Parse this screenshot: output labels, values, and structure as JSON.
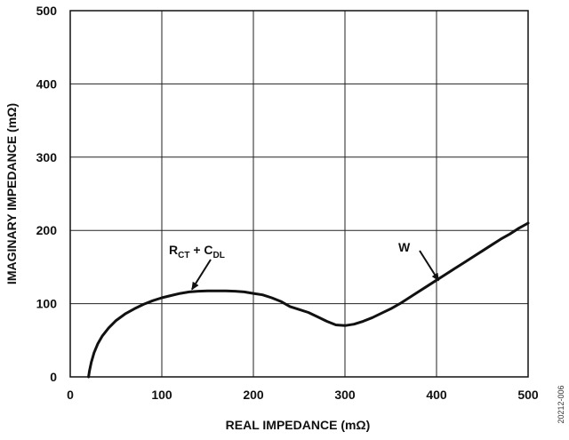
{
  "chart_data": {
    "type": "line",
    "xlabel": "REAL IMPEDANCE (mΩ)",
    "ylabel": "IMAGINARY IMPEDANCE (mΩ)",
    "xlim": [
      0,
      500
    ],
    "ylim": [
      0,
      500
    ],
    "xticks": [
      0,
      100,
      200,
      300,
      400,
      500
    ],
    "yticks": [
      0,
      100,
      200,
      300,
      400,
      500
    ],
    "grid": true,
    "series": [
      {
        "x": [
          20,
          21,
          23,
          26,
          30,
          35,
          42,
          50,
          60,
          70,
          80,
          90,
          100,
          110,
          120,
          130,
          140,
          150,
          160,
          170,
          180,
          190,
          200,
          210,
          220,
          230,
          240,
          250,
          260,
          270,
          280,
          290,
          300,
          310,
          320,
          330,
          340,
          350,
          360,
          370,
          380,
          390,
          400,
          410,
          420,
          430,
          440,
          450,
          460,
          470,
          480,
          490,
          500
        ],
        "y": [
          0,
          8,
          20,
          33,
          45,
          56,
          67,
          77,
          86,
          93,
          99,
          104,
          108,
          111,
          114,
          116,
          117,
          117.5,
          117.5,
          117.5,
          117,
          116,
          114,
          112,
          108,
          103,
          96,
          92,
          88,
          82,
          76,
          71,
          70,
          72,
          76,
          81,
          87,
          93,
          100,
          108,
          116,
          124,
          132,
          140,
          148,
          156,
          164,
          172,
          180,
          188,
          195,
          203,
          210
        ]
      }
    ],
    "annotations": [
      {
        "id": "rct-cdl",
        "parts": [
          [
            "R",
            ""
          ],
          [
            "CT",
            "sub"
          ],
          [
            " + C",
            ""
          ],
          [
            "DL",
            "sub"
          ]
        ],
        "target": [
          130,
          117
        ]
      },
      {
        "id": "w",
        "text": "W",
        "target": [
          410,
          140
        ]
      }
    ]
  },
  "figure_id": "20212-006"
}
